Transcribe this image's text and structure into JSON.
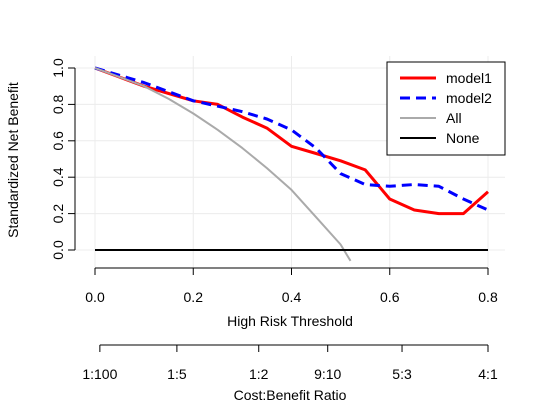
{
  "chart_data": {
    "type": "line",
    "title": "",
    "xlabel": "High Risk Threshold",
    "ylabel": "Standardized Net Benefit",
    "xlim": [
      0.0,
      0.8
    ],
    "ylim": [
      0.0,
      1.0
    ],
    "x_ticks": [
      "0.0",
      "0.2",
      "0.4",
      "0.6",
      "0.8"
    ],
    "y_ticks": [
      "0.0",
      "0.2",
      "0.4",
      "0.6",
      "0.8",
      "1.0"
    ],
    "grid": true,
    "legend_position": "top-right",
    "secondary_axis": {
      "label": "Cost:Benefit Ratio",
      "ticks": [
        {
          "label": "1:100",
          "threshold": 0.0099
        },
        {
          "label": "1:5",
          "threshold": 0.1667
        },
        {
          "label": "1:2",
          "threshold": 0.3333
        },
        {
          "label": "9:10",
          "threshold": 0.4737
        },
        {
          "label": "5:3",
          "threshold": 0.625
        },
        {
          "label": "4:1",
          "threshold": 0.8
        }
      ]
    },
    "series": [
      {
        "name": "model1",
        "color": "#ff0000",
        "dash": "solid",
        "x": [
          0.0,
          0.05,
          0.1,
          0.15,
          0.2,
          0.25,
          0.3,
          0.35,
          0.4,
          0.45,
          0.5,
          0.55,
          0.6,
          0.65,
          0.7,
          0.75,
          0.8
        ],
        "y": [
          1.0,
          0.95,
          0.9,
          0.86,
          0.82,
          0.8,
          0.73,
          0.67,
          0.57,
          0.53,
          0.49,
          0.44,
          0.28,
          0.22,
          0.2,
          0.2,
          0.32
        ]
      },
      {
        "name": "model2",
        "color": "#0000ff",
        "dash": "dashed",
        "x": [
          0.0,
          0.05,
          0.1,
          0.15,
          0.2,
          0.25,
          0.3,
          0.35,
          0.4,
          0.45,
          0.5,
          0.55,
          0.6,
          0.65,
          0.7,
          0.75,
          0.8
        ],
        "y": [
          1.0,
          0.96,
          0.92,
          0.87,
          0.82,
          0.79,
          0.76,
          0.72,
          0.66,
          0.56,
          0.42,
          0.36,
          0.35,
          0.36,
          0.35,
          0.28,
          0.22
        ]
      },
      {
        "name": "All",
        "color": "#aaaaaa",
        "dash": "solid",
        "x": [
          0.0,
          0.05,
          0.1,
          0.15,
          0.2,
          0.25,
          0.3,
          0.35,
          0.4,
          0.45,
          0.5,
          0.52
        ],
        "y": [
          1.0,
          0.95,
          0.9,
          0.83,
          0.75,
          0.66,
          0.56,
          0.45,
          0.33,
          0.18,
          0.03,
          -0.06
        ]
      },
      {
        "name": "None",
        "color": "#000000",
        "dash": "solid",
        "x": [
          0.0,
          0.8
        ],
        "y": [
          0.0,
          0.0
        ]
      }
    ]
  }
}
